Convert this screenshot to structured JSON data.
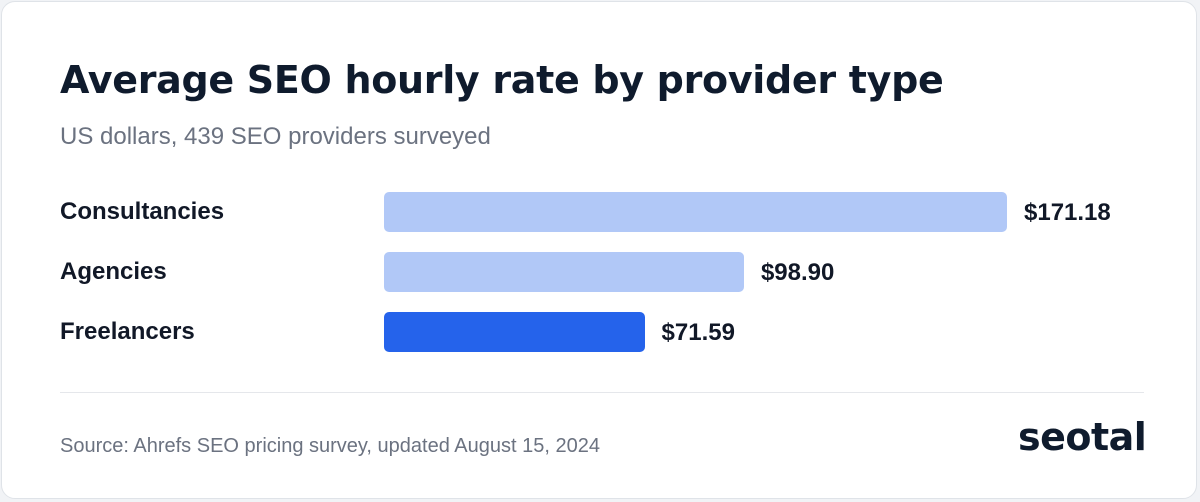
{
  "chart_data": {
    "type": "bar",
    "orientation": "horizontal",
    "title": "Average SEO hourly rate by provider type",
    "subtitle": "US dollars, 439 SEO providers surveyed",
    "categories": [
      "Consultancies",
      "Agencies",
      "Freelancers"
    ],
    "values": [
      171.18,
      98.9,
      71.59
    ],
    "value_labels": [
      "$171.18",
      "$98.90",
      "$71.59"
    ],
    "colors": [
      "#b1c8f7",
      "#b1c8f7",
      "#2563eb"
    ],
    "grid": false
  },
  "footer": {
    "source": "Source: Ahrefs SEO pricing survey, updated August 15, 2024"
  },
  "brand": {
    "logo_text": "seotal",
    "accent": "#2563eb"
  }
}
